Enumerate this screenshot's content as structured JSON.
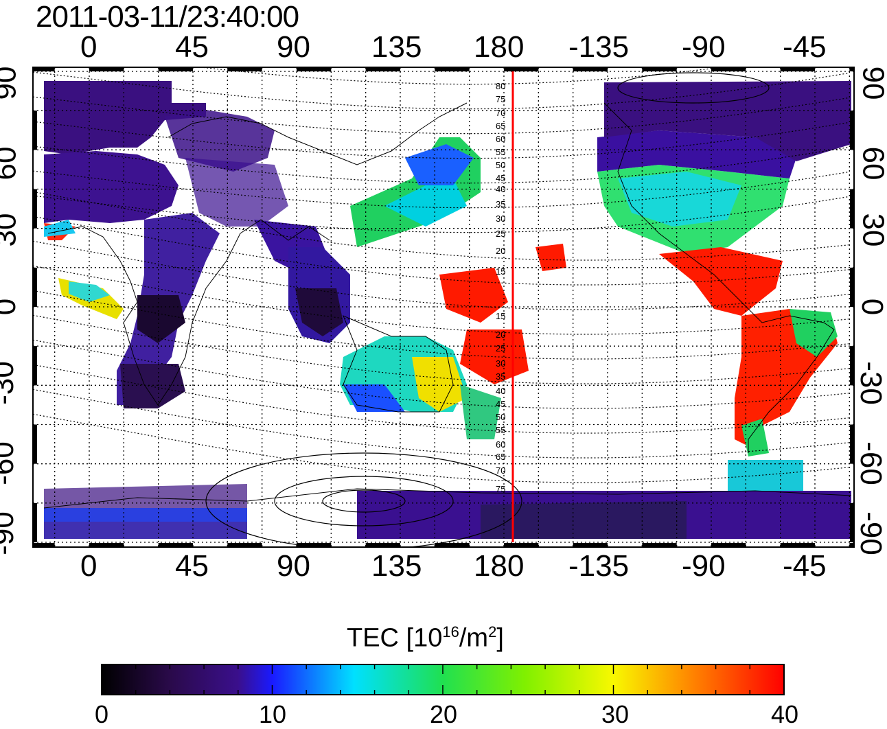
{
  "title": "2011-03-11/23:40:00",
  "x_ticks": [
    "0",
    "45",
    "90",
    "135",
    "180",
    "-135",
    "-90",
    "-45"
  ],
  "y_ticks": [
    "90",
    "60",
    "30",
    "0",
    "-30",
    "-60",
    "-90"
  ],
  "contour_labels": [
    "80",
    "75",
    "70",
    "65",
    "60",
    "55",
    "50",
    "45",
    "40",
    "35",
    "30",
    "25",
    "20",
    "15",
    "15",
    "20",
    "25",
    "30",
    "35",
    "40",
    "45",
    "50",
    "55",
    "60",
    "65",
    "70",
    "75"
  ],
  "colorbar": {
    "label_main": "TEC  [10",
    "label_sup1": "16",
    "label_mid": "/m",
    "label_sup2": "2",
    "label_end": "]",
    "ticks": [
      "0",
      "10",
      "20",
      "30",
      "40"
    ],
    "min": 0,
    "max": 40
  },
  "colors": {
    "meridian_line": "#ff0000",
    "scale": [
      "#000000",
      "#2a0a4a",
      "#3a0f8c",
      "#1a1aff",
      "#00d8ff",
      "#20e050",
      "#f0f000",
      "#ff8800",
      "#ff0000"
    ]
  }
}
